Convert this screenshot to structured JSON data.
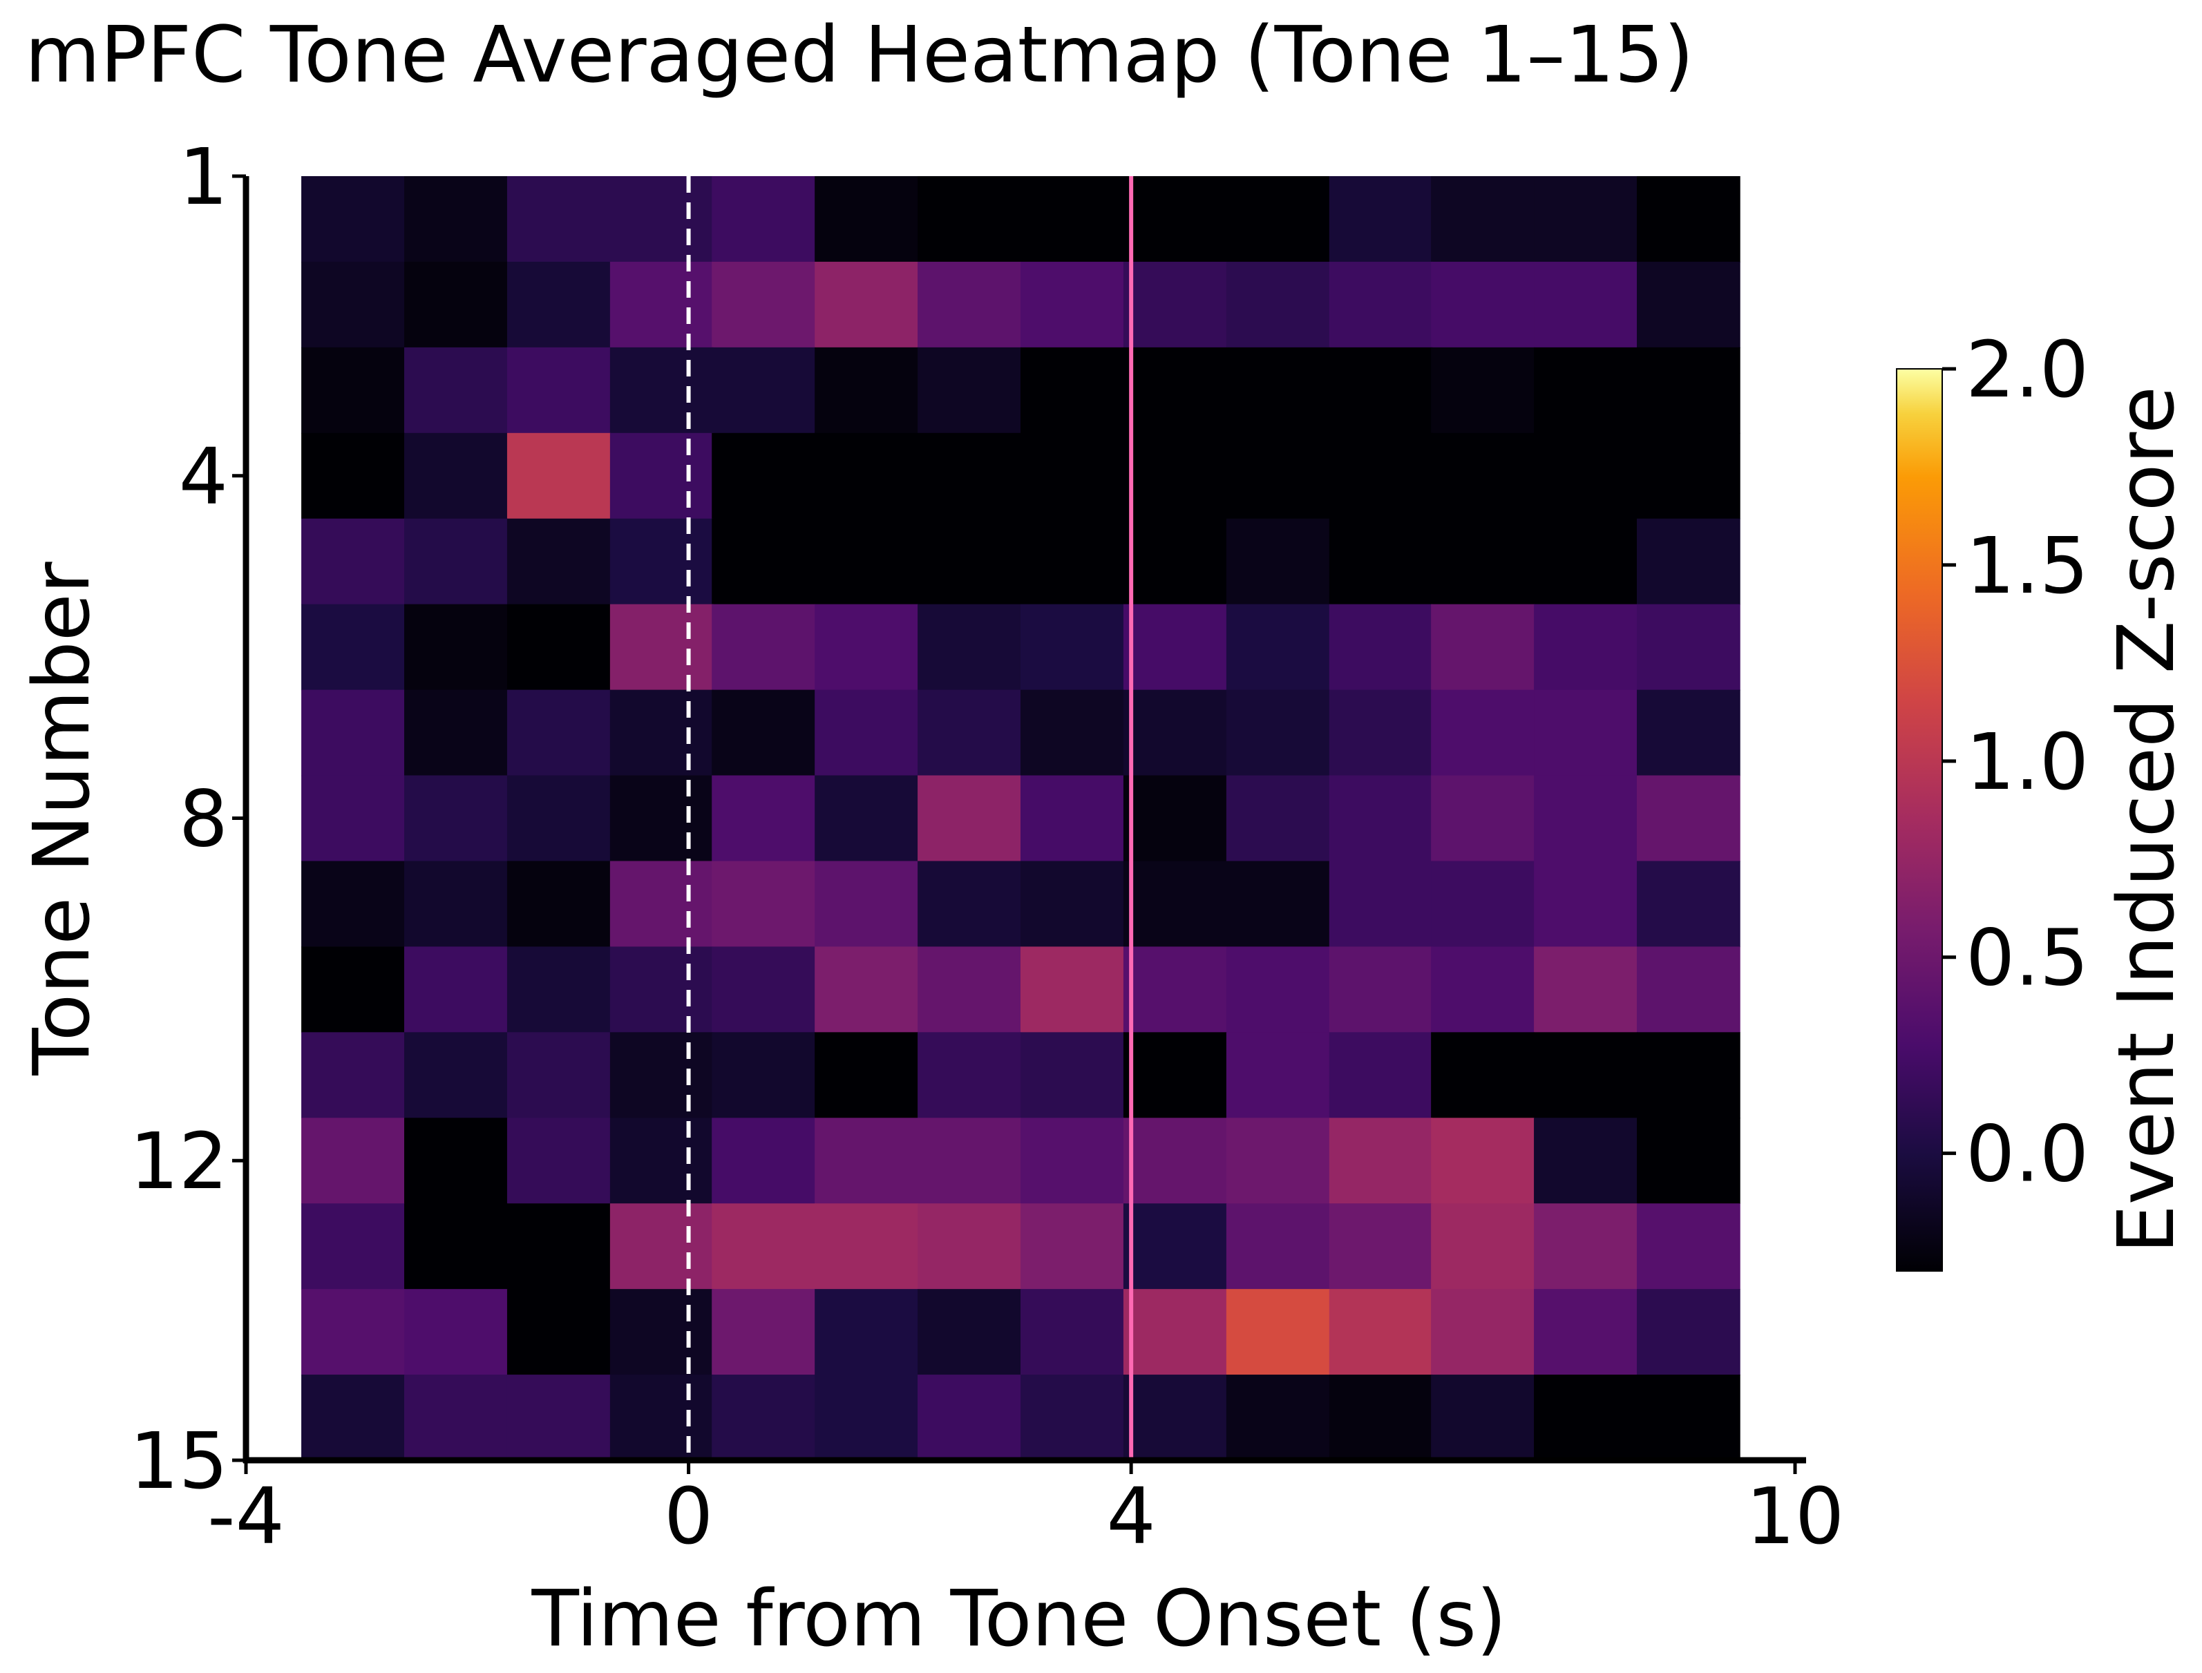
{
  "chart_data": {
    "type": "heatmap",
    "title": "mPFC Tone Averaged Heatmap (Tone 1–15)",
    "xlabel": "Time from Tone Onset (s)",
    "ylabel": "Tone Number",
    "xlim": [
      -4,
      10
    ],
    "x_ticks": [
      {
        "value": -4,
        "label": "-4"
      },
      {
        "value": 0,
        "label": "0"
      },
      {
        "value": 4,
        "label": "4"
      },
      {
        "value": 10,
        "label": "10"
      }
    ],
    "y_ticks": [
      {
        "value": 1,
        "label": "1"
      },
      {
        "value": 4,
        "label": "4"
      },
      {
        "value": 8,
        "label": "8"
      },
      {
        "value": 12,
        "label": "12"
      },
      {
        "value": 15,
        "label": "15"
      }
    ],
    "x_bins": [
      -3.5,
      -2.57,
      -1.64,
      -0.71,
      0.21,
      1.14,
      2.07,
      3.0,
      3.93,
      4.86,
      5.79,
      6.71,
      7.64,
      8.57
    ],
    "x_bin_width": 0.93,
    "tones": [
      1,
      2,
      3,
      4,
      5,
      6,
      7,
      8,
      9,
      10,
      11,
      12,
      13,
      14,
      15
    ],
    "values": [
      [
        -0.1,
        -0.2,
        0.1,
        0.1,
        0.2,
        -0.25,
        -0.3,
        -0.3,
        -0.3,
        -0.3,
        -0.05,
        -0.15,
        -0.15,
        -0.3
      ],
      [
        -0.15,
        -0.25,
        -0.05,
        0.35,
        0.5,
        0.7,
        0.4,
        0.3,
        0.15,
        0.1,
        0.2,
        0.25,
        0.25,
        -0.15
      ],
      [
        -0.25,
        0.1,
        0.2,
        -0.05,
        -0.05,
        -0.25,
        -0.15,
        -0.3,
        -0.3,
        -0.3,
        -0.3,
        -0.25,
        -0.3,
        -0.3
      ],
      [
        -0.3,
        -0.1,
        1.0,
        0.2,
        -0.3,
        -0.3,
        -0.3,
        -0.3,
        -0.3,
        -0.3,
        -0.3,
        -0.3,
        -0.3,
        -0.3
      ],
      [
        0.15,
        0.05,
        -0.15,
        0.0,
        -0.3,
        -0.3,
        -0.3,
        -0.3,
        -0.3,
        -0.2,
        -0.3,
        -0.3,
        -0.3,
        -0.1
      ],
      [
        0.0,
        -0.25,
        -0.3,
        0.65,
        0.4,
        0.3,
        -0.05,
        0.0,
        0.25,
        0.0,
        0.2,
        0.45,
        0.25,
        0.2
      ],
      [
        0.2,
        -0.2,
        0.05,
        -0.1,
        -0.2,
        0.2,
        0.05,
        -0.15,
        -0.1,
        -0.05,
        0.1,
        0.3,
        0.3,
        -0.05
      ],
      [
        0.2,
        0.05,
        -0.05,
        -0.2,
        0.3,
        -0.05,
        0.7,
        0.25,
        -0.25,
        0.1,
        0.2,
        0.4,
        0.3,
        0.45
      ],
      [
        -0.2,
        -0.1,
        -0.25,
        0.45,
        0.5,
        0.4,
        -0.05,
        -0.1,
        -0.2,
        -0.2,
        0.2,
        0.2,
        0.3,
        0.05
      ],
      [
        -0.3,
        0.2,
        -0.05,
        0.1,
        0.15,
        0.6,
        0.45,
        0.8,
        0.35,
        0.3,
        0.4,
        0.3,
        0.6,
        0.4
      ],
      [
        0.15,
        -0.05,
        0.1,
        -0.15,
        -0.1,
        -0.3,
        0.15,
        0.1,
        -0.3,
        0.3,
        0.2,
        -0.3,
        -0.3,
        -0.3
      ],
      [
        0.45,
        -0.3,
        0.15,
        -0.1,
        0.25,
        0.45,
        0.45,
        0.35,
        0.45,
        0.5,
        0.75,
        0.85,
        -0.1,
        -0.3
      ],
      [
        0.2,
        -0.3,
        -0.3,
        0.7,
        0.8,
        0.8,
        0.75,
        0.6,
        0.0,
        0.4,
        0.5,
        0.8,
        0.6,
        0.35
      ],
      [
        0.35,
        0.3,
        -0.3,
        -0.15,
        0.5,
        0.0,
        -0.1,
        0.15,
        0.8,
        1.2,
        0.95,
        0.75,
        0.35,
        0.1
      ],
      [
        -0.05,
        0.15,
        0.15,
        -0.1,
        0.05,
        0.0,
        0.2,
        0.05,
        -0.05,
        -0.2,
        -0.25,
        -0.1,
        -0.3,
        -0.3
      ]
    ],
    "vertical_lines": [
      {
        "x": 0,
        "style": "dashed",
        "color": "#ffffff"
      },
      {
        "x": 4,
        "style": "solid",
        "color": "#ff69b4"
      }
    ],
    "colormap": "inferno",
    "colorbar": {
      "label": "Event Induced Z-score",
      "min": -0.3,
      "max": 2.0,
      "ticks": [
        {
          "value": 0.0,
          "label": "0.0"
        },
        {
          "value": 0.5,
          "label": "0.5"
        },
        {
          "value": 1.0,
          "label": "1.0"
        },
        {
          "value": 1.5,
          "label": "1.5"
        },
        {
          "value": 2.0,
          "label": "2.0"
        }
      ]
    },
    "grid": false,
    "legend": "none"
  }
}
